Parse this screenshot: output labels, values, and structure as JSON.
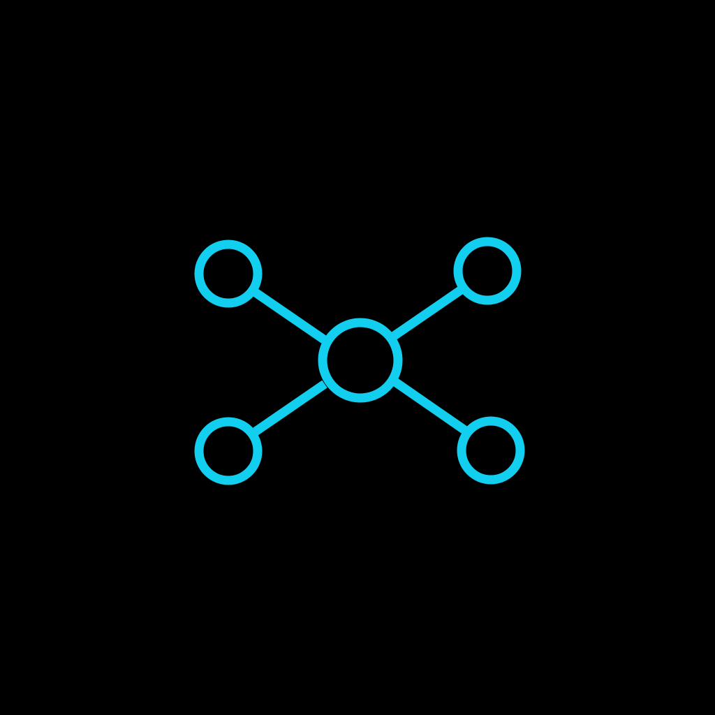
{
  "icon": {
    "name": "network-hub-icon",
    "color": "#13CFEF",
    "background": "#000000",
    "nodes": [
      "center-node",
      "top-left-node",
      "top-right-node",
      "bottom-left-node",
      "bottom-right-node"
    ]
  }
}
